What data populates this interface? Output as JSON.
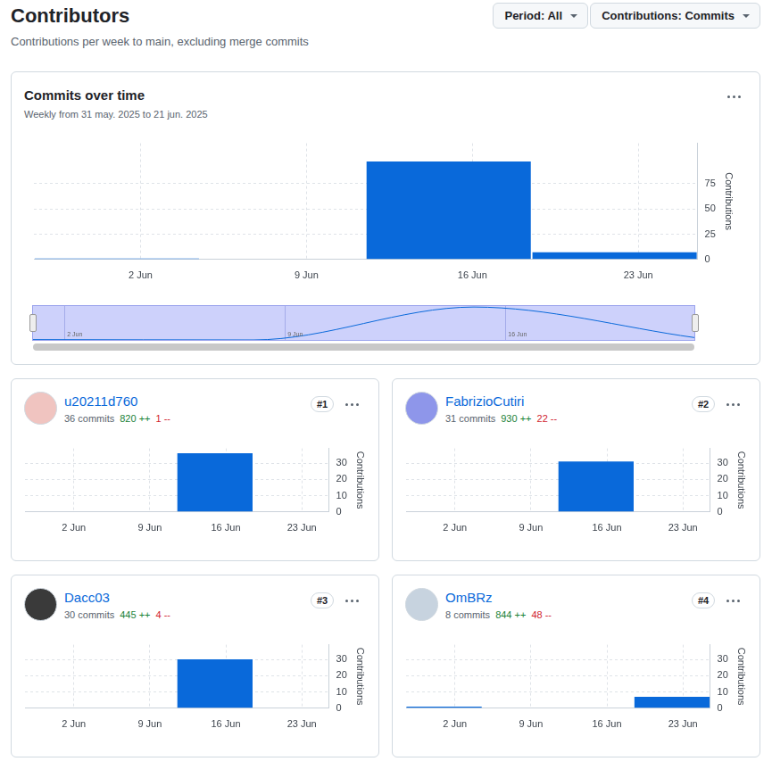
{
  "header": {
    "title": "Contributors",
    "subtitle": "Contributions per week to main, excluding merge commits",
    "filters": [
      "Period: All",
      "Contributions: Commits"
    ]
  },
  "chart_data": [
    {
      "type": "bar",
      "title": "Commits over time",
      "subtitle": "Weekly from 31 may. 2025 to 21 jun. 2025",
      "x": [
        1,
        8,
        15,
        22
      ],
      "values": [
        1,
        0,
        97,
        7
      ],
      "color": "#0969da",
      "xlim": [
        -2.5,
        25.5
      ],
      "xticks": [
        {
          "value": 2,
          "label": "2 Jun"
        },
        {
          "value": 9,
          "label": "9 Jun"
        },
        {
          "value": 16,
          "label": "16 Jun"
        },
        {
          "value": 23,
          "label": "23 Jun"
        }
      ],
      "ylim": [
        0,
        115
      ],
      "yticks": [
        0,
        25,
        50,
        75
      ],
      "y_label": "Contributions",
      "grid": true
    },
    {
      "type": "line",
      "x": [
        1,
        8,
        15,
        22
      ],
      "values": [
        1,
        0,
        97,
        7
      ],
      "color": "#0969da",
      "xlim": [
        1,
        22
      ],
      "xticks": [
        {
          "value": 2,
          "label": "2 Jun"
        },
        {
          "value": 9,
          "label": "9 Jun"
        },
        {
          "value": 16,
          "label": "16 Jun"
        }
      ],
      "ylim": [
        0,
        100
      ],
      "tick_labels": "x",
      "grid": true
    },
    {
      "type": "bar",
      "title": "u20211d760",
      "subtitle": "36 commits",
      "additions": "820 ++",
      "deletions": "1 --",
      "rank": "#1",
      "x": [
        1,
        8,
        15,
        22
      ],
      "values": [
        0,
        0,
        36,
        0
      ],
      "color": "#0969da",
      "xlim": [
        -2.5,
        25.5
      ],
      "xticks": [
        {
          "value": 2,
          "label": "2 Jun"
        },
        {
          "value": 9,
          "label": "9 Jun"
        },
        {
          "value": 16,
          "label": "16 Jun"
        },
        {
          "value": 23,
          "label": "23 Jun"
        }
      ],
      "ylim": [
        0,
        39
      ],
      "yticks": [
        0,
        10,
        20,
        30
      ],
      "y_label": "Contributions",
      "grid": true
    },
    {
      "type": "bar",
      "title": "FabrizioCutiri",
      "subtitle": "31 commits",
      "additions": "930 ++",
      "deletions": "22 --",
      "rank": "#2",
      "x": [
        1,
        8,
        15,
        22
      ],
      "values": [
        0,
        0,
        31,
        0
      ],
      "color": "#0969da",
      "xlim": [
        -2.5,
        25.5
      ],
      "xticks": [
        {
          "value": 2,
          "label": "2 Jun"
        },
        {
          "value": 9,
          "label": "9 Jun"
        },
        {
          "value": 16,
          "label": "16 Jun"
        },
        {
          "value": 23,
          "label": "23 Jun"
        }
      ],
      "ylim": [
        0,
        39
      ],
      "yticks": [
        0,
        10,
        20,
        30
      ],
      "y_label": "Contributions",
      "grid": true
    },
    {
      "type": "bar",
      "title": "Dacc03",
      "subtitle": "30 commits",
      "additions": "445 ++",
      "deletions": "4 --",
      "rank": "#3",
      "x": [
        1,
        8,
        15,
        22
      ],
      "values": [
        0,
        0,
        30,
        0
      ],
      "color": "#0969da",
      "xlim": [
        -2.5,
        25.5
      ],
      "xticks": [
        {
          "value": 2,
          "label": "2 Jun"
        },
        {
          "value": 9,
          "label": "9 Jun"
        },
        {
          "value": 16,
          "label": "16 Jun"
        },
        {
          "value": 23,
          "label": "23 Jun"
        }
      ],
      "ylim": [
        0,
        39
      ],
      "yticks": [
        0,
        10,
        20,
        30
      ],
      "y_label": "Contributions",
      "grid": true
    },
    {
      "type": "bar",
      "title": "OmBRz",
      "subtitle": "8 commits",
      "additions": "844 ++",
      "deletions": "48 --",
      "rank": "#4",
      "x": [
        1,
        8,
        15,
        22
      ],
      "values": [
        1,
        0,
        0,
        7
      ],
      "color": "#0969da",
      "xlim": [
        -2.5,
        25.5
      ],
      "xticks": [
        {
          "value": 2,
          "label": "2 Jun"
        },
        {
          "value": 9,
          "label": "9 Jun"
        },
        {
          "value": 16,
          "label": "16 Jun"
        },
        {
          "value": 23,
          "label": "23 Jun"
        }
      ],
      "ylim": [
        0,
        39
      ],
      "yticks": [
        0,
        10,
        20,
        30
      ],
      "y_label": "Contributions",
      "grid": true
    }
  ]
}
